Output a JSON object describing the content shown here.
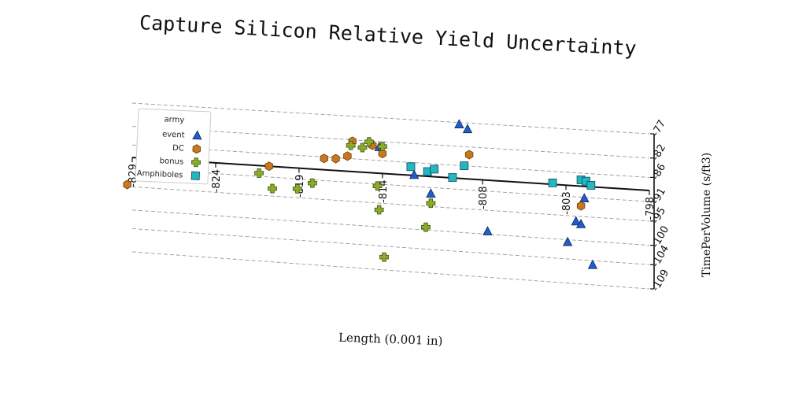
{
  "chart_data": {
    "type": "scatter",
    "title": "Capture Silicon Relative Yield Uncertainty",
    "xlabel": "Length (0.001 in)",
    "ylabel": "TimePerVolume (s/ft3)",
    "xlim": [
      -829,
      -798
    ],
    "ylim": [
      -109,
      -77
    ],
    "x_ticks": [
      "-829",
      "-824",
      "-819",
      "-814",
      "-808",
      "-803",
      "-798"
    ],
    "y_ticks": [
      "-77",
      "-82",
      "-86",
      "-91",
      "-95",
      "-100",
      "-104",
      "-109"
    ],
    "grid": true,
    "legend": {
      "title": "army",
      "position": "top-left"
    },
    "series": [
      {
        "name": "event",
        "color": "#1f5fcc",
        "marker": "triangle",
        "points": [
          [
            -814.2,
            -83.2
          ],
          [
            -812.1,
            -88.6
          ],
          [
            -811.1,
            -92.3
          ],
          [
            -809.4,
            -77.4
          ],
          [
            -808.9,
            -78.3
          ],
          [
            -807.7,
            -99.4
          ],
          [
            -802.9,
            -100.5
          ],
          [
            -802.4,
            -96.1
          ],
          [
            -802.1,
            -96.6
          ],
          [
            -801.9,
            -91.2
          ],
          [
            -801.4,
            -104.9
          ]
        ]
      },
      {
        "name": "DC",
        "color": "#c8781e",
        "marker": "hexagon",
        "points": [
          [
            -829.3,
            -94.6
          ],
          [
            -827.1,
            -86.3
          ],
          [
            -825.6,
            -91.5
          ],
          [
            -820.8,
            -88.7
          ],
          [
            -817.5,
            -86.3
          ],
          [
            -816.8,
            -86.2
          ],
          [
            -816.1,
            -85.5
          ],
          [
            -815.8,
            -82.3
          ],
          [
            -814.6,
            -82.9
          ],
          [
            -814.0,
            -84.5
          ],
          [
            -808.8,
            -83.6
          ],
          [
            -802.1,
            -92.8
          ]
        ]
      },
      {
        "name": "bonus",
        "color": "#8aac2a",
        "marker": "plus",
        "points": [
          [
            -821.4,
            -90.3
          ],
          [
            -820.6,
            -93.4
          ],
          [
            -819.1,
            -93.1
          ],
          [
            -818.2,
            -91.7
          ],
          [
            -815.9,
            -83.2
          ],
          [
            -815.2,
            -83.5
          ],
          [
            -814.8,
            -82.2
          ],
          [
            -814.3,
            -91.4
          ],
          [
            -814.2,
            -96.4
          ],
          [
            -814.0,
            -83.0
          ],
          [
            -811.4,
            -99.4
          ],
          [
            -811.1,
            -94.3
          ],
          [
            -813.9,
            -106.3
          ]
        ]
      },
      {
        "name": "Amphiboles",
        "color": "#22b7c4",
        "marker": "square",
        "points": [
          [
            -812.3,
            -86.9
          ],
          [
            -811.3,
            -87.7
          ],
          [
            -810.9,
            -87.1
          ],
          [
            -809.8,
            -88.6
          ],
          [
            -809.1,
            -86.0
          ],
          [
            -803.8,
            -88.4
          ],
          [
            -802.1,
            -87.4
          ],
          [
            -801.8,
            -87.6
          ],
          [
            -801.5,
            -88.4
          ]
        ]
      }
    ]
  }
}
